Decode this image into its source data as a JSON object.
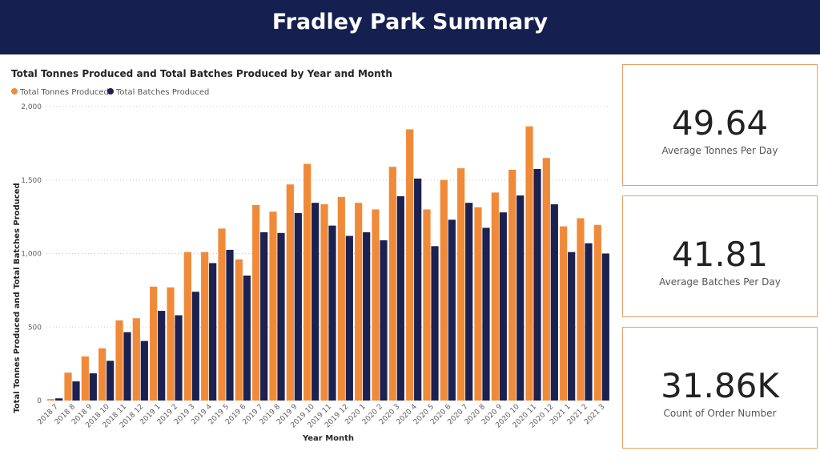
{
  "header": {
    "title": "Fradley Park Summary"
  },
  "colors": {
    "header_bg": "#152050",
    "tonnes": "#f08a39",
    "batches": "#1b2150",
    "card_border": "#e9a06a"
  },
  "kpis": [
    {
      "value": "49.64",
      "label": "Average Tonnes Per Day"
    },
    {
      "value": "41.81",
      "label": "Average Batches Per Day"
    },
    {
      "value": "31.86K",
      "label": "Count of Order Number"
    }
  ],
  "chart_data": {
    "type": "bar",
    "title": "Total Tonnes Produced and Total Batches Produced by Year and Month",
    "xlabel": "Year Month",
    "ylabel": "Total Tonnes Produced and Total Batches Produced",
    "ylim": [
      0,
      2000
    ],
    "yticks": [
      0,
      500,
      1000,
      1500,
      2000
    ],
    "ytick_labels": [
      "0",
      "500",
      "1,000",
      "1,500",
      "2,000"
    ],
    "grid": true,
    "legend_position": "top-left",
    "categories": [
      "2018 7",
      "2018 8",
      "2018 9",
      "2018 10",
      "2018 11",
      "2018 12",
      "2019 1",
      "2019 2",
      "2019 3",
      "2019 4",
      "2019 5",
      "2019 6",
      "2019 7",
      "2019 8",
      "2019 9",
      "2019 10",
      "2019 11",
      "2019 12",
      "2020 1",
      "2020 2",
      "2020 3",
      "2020 4",
      "2020 5",
      "2020 6",
      "2020 7",
      "2020 8",
      "2020 9",
      "2020 10",
      "2020 11",
      "2020 12",
      "2021 1",
      "2021 2",
      "2021 3"
    ],
    "series": [
      {
        "name": "Total Tonnes Produced",
        "color": "#f08a39",
        "values": [
          10,
          190,
          300,
          355,
          545,
          560,
          775,
          770,
          1010,
          1010,
          1170,
          960,
          1330,
          1285,
          1470,
          1610,
          1335,
          1385,
          1345,
          1300,
          1590,
          1845,
          1300,
          1500,
          1580,
          1315,
          1415,
          1570,
          1865,
          1650,
          1185,
          1240,
          1195
        ]
      },
      {
        "name": "Total Batches Produced",
        "color": "#1b2150",
        "values": [
          15,
          130,
          185,
          270,
          465,
          405,
          610,
          580,
          740,
          935,
          1025,
          850,
          1145,
          1140,
          1275,
          1345,
          1190,
          1120,
          1145,
          1090,
          1390,
          1510,
          1050,
          1230,
          1345,
          1175,
          1280,
          1395,
          1575,
          1335,
          1010,
          1070,
          1000
        ]
      }
    ]
  }
}
